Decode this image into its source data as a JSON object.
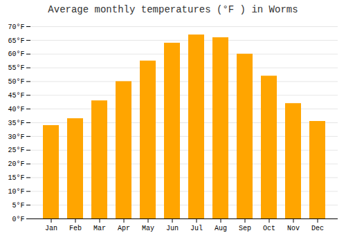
{
  "chart_data": {
    "type": "bar",
    "title": "Average monthly temperatures (°F ) in Worms",
    "categories": [
      "Jan",
      "Feb",
      "Mar",
      "Apr",
      "May",
      "Jun",
      "Jul",
      "Aug",
      "Sep",
      "Oct",
      "Nov",
      "Dec"
    ],
    "values": [
      34,
      36.5,
      43,
      50,
      57.5,
      64,
      67,
      66,
      60,
      52,
      42,
      35.5
    ],
    "color": "#FFA500",
    "ylim": [
      0,
      70
    ],
    "yticks": [
      {
        "value": 0,
        "label": "0°F"
      },
      {
        "value": 5,
        "label": "5°F"
      },
      {
        "value": 10,
        "label": "10°F"
      },
      {
        "value": 15,
        "label": "15°F"
      },
      {
        "value": 20,
        "label": "20°F"
      },
      {
        "value": 25,
        "label": "25°F"
      },
      {
        "value": 30,
        "label": "30°F"
      },
      {
        "value": 35,
        "label": "35°F"
      },
      {
        "value": 40,
        "label": "40°F"
      },
      {
        "value": 45,
        "label": "45°F"
      },
      {
        "value": 50,
        "label": "50°F"
      },
      {
        "value": 55,
        "label": "55°F"
      },
      {
        "value": 60,
        "label": "60°F"
      },
      {
        "value": 65,
        "label": "65°F"
      },
      {
        "value": 70,
        "label": "70°F"
      }
    ],
    "grid": true
  }
}
